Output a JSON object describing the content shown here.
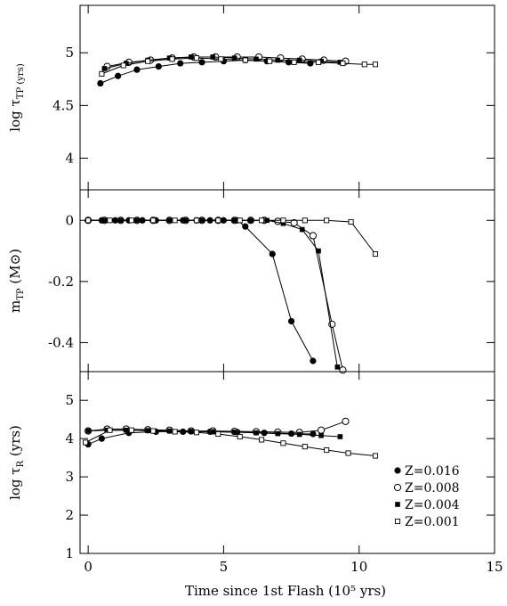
{
  "chart_data": {
    "type": "line",
    "x_axis": {
      "label": "Time since 1st Flash (10⁵ yrs)",
      "range": [
        -0.3,
        15
      ],
      "ticks": [
        0,
        5,
        10,
        15
      ]
    },
    "legend": {
      "placement": "bottom-right of lower panel",
      "entries": [
        {
          "label": "Z=0.016",
          "marker": "filled-circle"
        },
        {
          "label": "Z=0.008",
          "marker": "open-circle"
        },
        {
          "label": "Z=0.004",
          "marker": "filled-square"
        },
        {
          "label": "Z=0.001",
          "marker": "open-square"
        }
      ]
    },
    "panels": [
      {
        "key": "top",
        "ylabel_main": "log τ",
        "ylabel_sub": "TP (yrs)",
        "ylim": [
          3.7,
          5.45
        ],
        "yticks": [
          4,
          4.5,
          5
        ],
        "yticklabels": [
          "4",
          "4.5",
          "5"
        ],
        "series": [
          {
            "name": "Z=0.016",
            "marker": "filled-circle",
            "x": [
              0.45,
              1.1,
              1.8,
              2.6,
              3.4,
              4.2,
              5.0,
              5.8,
              6.6,
              7.4,
              8.2
            ],
            "y": [
              4.71,
              4.78,
              4.84,
              4.87,
              4.9,
              4.91,
              4.92,
              4.93,
              4.92,
              4.91,
              4.9
            ]
          },
          {
            "name": "Z=0.008",
            "marker": "open-circle",
            "x": [
              0.7,
              1.5,
              2.3,
              3.1,
              3.9,
              4.7,
              5.5,
              6.3,
              7.1,
              7.9,
              8.7,
              9.5
            ],
            "y": [
              4.87,
              4.91,
              4.93,
              4.95,
              4.96,
              4.96,
              4.96,
              4.96,
              4.95,
              4.94,
              4.93,
              4.92
            ]
          },
          {
            "name": "Z=0.004",
            "marker": "filled-square",
            "x": [
              0.6,
              1.4,
              2.2,
              3.0,
              3.8,
              4.6,
              5.4,
              6.2,
              7.0,
              7.8,
              8.6,
              9.3
            ],
            "y": [
              4.85,
              4.9,
              4.93,
              4.95,
              4.96,
              4.96,
              4.95,
              4.94,
              4.93,
              4.93,
              4.92,
              4.91
            ]
          },
          {
            "name": "Z=0.001",
            "marker": "open-square",
            "x": [
              0.5,
              1.3,
              2.2,
              3.1,
              4.0,
              4.9,
              5.8,
              6.7,
              7.6,
              8.5,
              9.4,
              10.2,
              10.6
            ],
            "y": [
              4.8,
              4.88,
              4.92,
              4.94,
              4.95,
              4.94,
              4.93,
              4.92,
              4.91,
              4.91,
              4.9,
              4.89,
              4.89
            ]
          }
        ]
      },
      {
        "key": "middle",
        "ylabel_main": "m",
        "ylabel_sub": "TP",
        "ylabel_tail": " (M⊙)",
        "ylim": [
          -0.495,
          0.1
        ],
        "yticks": [
          0,
          -0.2,
          -0.4
        ],
        "yticklabels": [
          "0",
          "-0.2",
          "-0.4"
        ],
        "series": [
          {
            "name": "Z=0.016",
            "marker": "filled-circle",
            "x": [
              0.0,
              0.5,
              1.0,
              1.5,
              2.0,
              2.5,
              3.0,
              3.5,
              4.0,
              4.5,
              5.0,
              5.5,
              5.8,
              6.8,
              7.5,
              8.3
            ],
            "y": [
              0,
              0,
              0,
              0,
              0,
              0,
              0,
              0,
              0,
              0,
              0,
              0,
              -0.02,
              -0.11,
              -0.33,
              -0.46
            ]
          },
          {
            "name": "Z=0.008",
            "marker": "open-circle",
            "x": [
              0.0,
              0.6,
              1.2,
              1.8,
              2.4,
              3.0,
              3.6,
              4.2,
              4.8,
              5.4,
              6.0,
              6.5,
              7.0,
              7.6,
              8.3,
              9.0,
              9.4
            ],
            "y": [
              0,
              0,
              0,
              0,
              0,
              0,
              0,
              0,
              0,
              0,
              0,
              0,
              -0.003,
              -0.008,
              -0.05,
              -0.34,
              -0.49
            ]
          },
          {
            "name": "Z=0.004",
            "marker": "filled-square",
            "x": [
              0.0,
              0.6,
              1.2,
              1.8,
              2.4,
              3.0,
              3.6,
              4.2,
              4.8,
              5.4,
              6.0,
              6.6,
              7.2,
              7.9,
              8.5,
              9.2
            ],
            "y": [
              0,
              0,
              0,
              0,
              0,
              0,
              0,
              0,
              0,
              0,
              0,
              0,
              -0.01,
              -0.03,
              -0.1,
              -0.48
            ]
          },
          {
            "name": "Z=0.001",
            "marker": "open-square",
            "x": [
              0.0,
              0.8,
              1.6,
              2.4,
              3.2,
              4.0,
              4.8,
              5.6,
              6.4,
              7.2,
              8.0,
              8.8,
              9.7,
              10.6
            ],
            "y": [
              0,
              0,
              0,
              0,
              0,
              0,
              0,
              0,
              0,
              0,
              0,
              0,
              -0.005,
              -0.11
            ]
          }
        ]
      },
      {
        "key": "bottom",
        "ylabel_main": "log τ",
        "ylabel_sub": "R",
        "ylabel_tail": " (yrs)",
        "ylim": [
          1,
          5.75
        ],
        "yticks": [
          1,
          2,
          3,
          4,
          5
        ],
        "yticklabels": [
          "1",
          "2",
          "3",
          "4",
          "5"
        ],
        "series": [
          {
            "name": "Z=0.016",
            "marker": "filled-circle",
            "x": [
              0.0,
              0.5,
              1.5,
              2.5,
              3.5,
              4.5,
              5.5,
              6.5,
              7.5,
              8.3
            ],
            "y": [
              3.85,
              4.0,
              4.15,
              4.18,
              4.18,
              4.18,
              4.17,
              4.15,
              4.13,
              4.12
            ]
          },
          {
            "name": "Z=0.008",
            "marker": "open-circle",
            "x": [
              0.0,
              0.7,
              1.4,
              2.2,
              3.0,
              3.8,
              4.6,
              5.4,
              6.2,
              7.0,
              7.8,
              8.6,
              9.5
            ],
            "y": [
              4.2,
              4.25,
              4.25,
              4.23,
              4.22,
              4.2,
              4.2,
              4.19,
              4.18,
              4.17,
              4.16,
              4.22,
              4.45
            ]
          },
          {
            "name": "Z=0.004",
            "marker": "filled-square",
            "x": [
              0.0,
              0.7,
              1.4,
              2.2,
              3.0,
              3.8,
              4.6,
              5.4,
              6.2,
              7.0,
              7.8,
              8.6,
              9.3
            ],
            "y": [
              4.2,
              4.22,
              4.22,
              4.21,
              4.2,
              4.19,
              4.18,
              4.17,
              4.15,
              4.13,
              4.11,
              4.08,
              4.05
            ]
          },
          {
            "name": "Z=0.001",
            "marker": "open-square",
            "x": [
              -0.1,
              0.8,
              1.6,
              2.4,
              3.2,
              4.0,
              4.8,
              5.6,
              6.4,
              7.2,
              8.0,
              8.8,
              9.6,
              10.6
            ],
            "y": [
              3.9,
              4.22,
              4.22,
              4.2,
              4.18,
              4.16,
              4.12,
              4.05,
              3.97,
              3.88,
              3.79,
              3.7,
              3.62,
              3.55
            ]
          }
        ]
      }
    ]
  }
}
